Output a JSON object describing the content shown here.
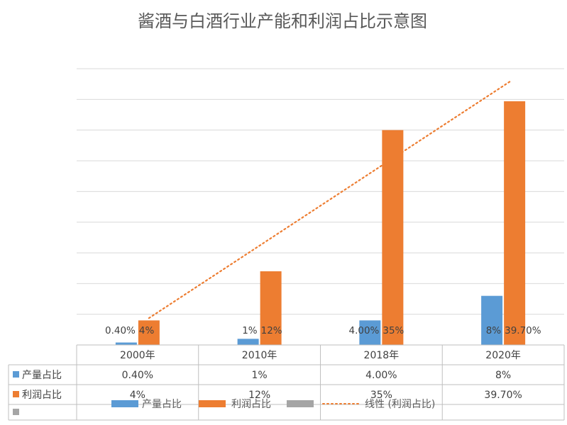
{
  "chart_data": {
    "type": "bar",
    "title": "酱酒与白酒行业产能和利润占比示意图",
    "categories": [
      "2000年",
      "2010年",
      "2018年",
      "2020年"
    ],
    "series": [
      {
        "name": "产量占比",
        "values": [
          0.4,
          1,
          4,
          8
        ],
        "value_labels": [
          "0.40%",
          "1%",
          "4.00%",
          "8%"
        ],
        "color": "#5b9bd5"
      },
      {
        "name": "利润占比",
        "values": [
          4,
          12,
          35,
          39.7
        ],
        "value_labels": [
          "4%",
          "12%",
          "35%",
          "39.70%"
        ],
        "color": "#ed7d31"
      }
    ],
    "empty_series": {
      "name": "",
      "color": "#a5a5a5"
    },
    "trendline": {
      "name": "线性 (利润占比)",
      "type": "linear",
      "series": "利润占比",
      "color": "#ed7d31"
    },
    "ylim": [
      0,
      45
    ],
    "grid_step": 5,
    "grid": true,
    "data_table": true,
    "legend_position": "bottom",
    "xlabel": "",
    "ylabel": ""
  }
}
